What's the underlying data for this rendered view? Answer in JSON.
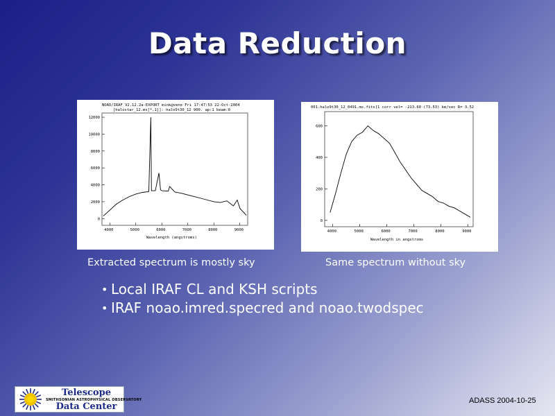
{
  "slide": {
    "title": "Data Reduction",
    "caption_left": "Extracted spectrum is mostly sky",
    "caption_right": "Same spectrum without sky",
    "bullets": [
      "Local IRAF CL and KSH scripts",
      "IRAF noao.imred.specred and noao.twodspec"
    ],
    "footer": "ADASS 2004-10-25",
    "logo": {
      "line1": "Telescope",
      "line2": "SMITHSONIAN ASTROPHYSICAL OBSERVATORY",
      "line3": "Data Center"
    }
  },
  "chart_data": [
    {
      "type": "line",
      "header": [
        "NOAO/IRAF V2.12.2a-EXPORT mink@vene Fri 17:47:53 22-Oct-2004",
        "[halostar_12.ms[*,1]]: halo9t30_12 900. ap:1 beam:0"
      ],
      "xlabel": "Wavelength (angstroms)",
      "x_ticks": [
        4000,
        5000,
        6000,
        7000,
        8000,
        9000
      ],
      "y_ticks": [
        0,
        2000,
        4000,
        6000,
        8000,
        10000,
        12000
      ],
      "xlim": [
        3700,
        9300
      ],
      "ylim": [
        -800,
        12500
      ],
      "x": [
        3750,
        4000,
        4250,
        4500,
        4750,
        5000,
        5250,
        5500,
        5577,
        5600,
        5750,
        5890,
        5950,
        6000,
        6250,
        6300,
        6500,
        6750,
        7000,
        7250,
        7500,
        7750,
        8000,
        8250,
        8500,
        8750,
        8900,
        9000,
        9250
      ],
      "y": [
        300,
        1000,
        1700,
        2200,
        2600,
        2900,
        3100,
        3200,
        12000,
        3300,
        3300,
        5400,
        3400,
        3300,
        3250,
        3800,
        3150,
        3000,
        2800,
        2600,
        2400,
        2200,
        2000,
        1900,
        2100,
        1500,
        2200,
        1200,
        400
      ]
    },
    {
      "type": "line",
      "header": [
        "001.halo9t30_12_0491.ms.fits[1   corr vel= -213.60 (73.53) km/sec R= 3.52"
      ],
      "xlabel": "Wavelength in angstroms",
      "x_ticks": [
        4000,
        5000,
        6000,
        7000,
        8000,
        9000
      ],
      "y_ticks": [
        0,
        200,
        400,
        600
      ],
      "xlim": [
        3700,
        9200
      ],
      "ylim": [
        -40,
        690
      ],
      "x": [
        3900,
        4100,
        4300,
        4500,
        4700,
        4900,
        5100,
        5300,
        5500,
        5700,
        5900,
        6100,
        6300,
        6500,
        6700,
        6900,
        7100,
        7300,
        7500,
        7700,
        7900,
        8100,
        8300,
        8500,
        8700,
        8900,
        9100
      ],
      "y": [
        50,
        170,
        300,
        420,
        500,
        540,
        560,
        600,
        570,
        550,
        520,
        490,
        430,
        370,
        320,
        270,
        230,
        190,
        170,
        150,
        120,
        110,
        90,
        80,
        60,
        40,
        20
      ]
    }
  ]
}
